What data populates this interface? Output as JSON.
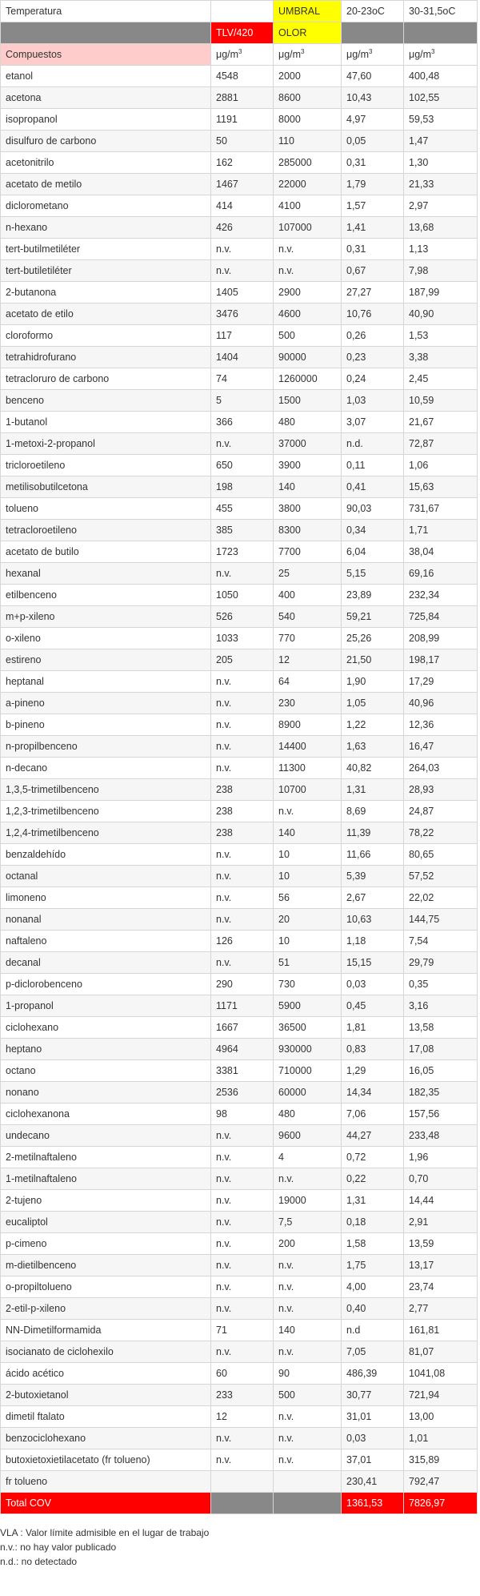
{
  "header": {
    "row1": [
      "Temperatura",
      null,
      "UMBRAL",
      "20-23oC",
      "30-31,5oC"
    ],
    "row2": [
      null,
      "TLV/420",
      "OLOR",
      null,
      null
    ],
    "row3": {
      "label": "Compuestos",
      "units": [
        {
          "text": "μg/m",
          "sup": "3"
        },
        {
          "text": "μg/m",
          "sup": "3"
        },
        {
          "text": "μg/m",
          "sup": "3"
        },
        {
          "text": "μg/m",
          "sup": "3"
        }
      ]
    }
  },
  "table": {
    "rows": [
      [
        "etanol",
        "4548",
        "2000",
        "47,60",
        "400,48"
      ],
      [
        "acetona",
        "2881",
        "8600",
        "10,43",
        "102,55"
      ],
      [
        "isopropanol",
        "1191",
        "8000",
        "4,97",
        "59,53"
      ],
      [
        "disulfuro de carbono",
        "50",
        "110",
        "0,05",
        "1,47"
      ],
      [
        "acetonitrilo",
        "162",
        "285000",
        "0,31",
        "1,30"
      ],
      [
        "acetato de metilo",
        "1467",
        "22000",
        "1,79",
        "21,33"
      ],
      [
        "diclorometano",
        "414",
        "4100",
        "1,57",
        "2,97"
      ],
      [
        "n-hexano",
        "426",
        "107000",
        "1,41",
        "13,68"
      ],
      [
        "tert-butilmetiléter",
        "n.v.",
        "n.v.",
        "0,31",
        "1,13"
      ],
      [
        "tert-butiletiléter",
        "n.v.",
        "n.v.",
        "0,67",
        "7,98"
      ],
      [
        "2-butanona",
        "1405",
        "2900",
        "27,27",
        "187,99"
      ],
      [
        "acetato de etilo",
        "3476",
        "4600",
        "10,76",
        "40,90"
      ],
      [
        "cloroformo",
        "117",
        "500",
        "0,26",
        "1,53"
      ],
      [
        "tetrahidrofurano",
        "1404",
        "90000",
        "0,23",
        "3,38"
      ],
      [
        "tetracloruro de carbono",
        "74",
        "1260000",
        "0,24",
        "2,45"
      ],
      [
        "benceno",
        "5",
        "1500",
        "1,03",
        "10,59"
      ],
      [
        "1-butanol",
        "366",
        "480",
        "3,07",
        "21,67"
      ],
      [
        "1-metoxi-2-propanol",
        "n.v.",
        "37000",
        "n.d.",
        "72,87"
      ],
      [
        "tricloroetileno",
        "650",
        "3900",
        "0,11",
        "1,06"
      ],
      [
        "metilisobutilcetona",
        "198",
        "140",
        "0,41",
        "15,63"
      ],
      [
        "tolueno",
        "455",
        "3800",
        "90,03",
        "731,67"
      ],
      [
        "tetracloroetileno",
        "385",
        "8300",
        "0,34",
        "1,71"
      ],
      [
        "acetato de butilo",
        "1723",
        "7700",
        "6,04",
        "38,04"
      ],
      [
        "hexanal",
        "n.v.",
        "25",
        "5,15",
        "69,16"
      ],
      [
        "etilbenceno",
        "1050",
        "400",
        "23,89",
        "232,34"
      ],
      [
        "m+p-xileno",
        "526",
        "540",
        "59,21",
        "725,84"
      ],
      [
        "o-xileno",
        "1033",
        "770",
        "25,26",
        "208,99"
      ],
      [
        "estireno",
        "205",
        "12",
        "21,50",
        "198,17"
      ],
      [
        "heptanal",
        "n.v.",
        "64",
        "1,90",
        "17,29"
      ],
      [
        "a-pineno",
        "n.v.",
        "230",
        "1,05",
        "40,96"
      ],
      [
        "b-pineno",
        "n.v.",
        "8900",
        "1,22",
        "12,36"
      ],
      [
        "n-propilbenceno",
        "n.v.",
        "14400",
        "1,63",
        "16,47"
      ],
      [
        "n-decano",
        "n.v.",
        "11300",
        "40,82",
        "264,03"
      ],
      [
        "1,3,5-trimetilbenceno",
        "238",
        "10700",
        "1,31",
        "28,93"
      ],
      [
        "1,2,3-trimetilbenceno",
        "238",
        "n.v.",
        "8,69",
        "24,87"
      ],
      [
        "1,2,4-trimetilbenceno",
        "238",
        "140",
        "11,39",
        "78,22"
      ],
      [
        "benzaldehído",
        "n.v.",
        "10",
        "11,66",
        "80,65"
      ],
      [
        "octanal",
        "n.v.",
        "10",
        "5,39",
        "57,52"
      ],
      [
        "limoneno",
        "n.v.",
        "56",
        "2,67",
        "22,02"
      ],
      [
        "nonanal",
        "n.v.",
        "20",
        "10,63",
        "144,75"
      ],
      [
        "naftaleno",
        "126",
        "10",
        "1,18",
        "7,54"
      ],
      [
        "decanal",
        "n.v.",
        "51",
        "15,15",
        "29,79"
      ],
      [
        "p-diclorobenceno",
        "290",
        "730",
        "0,03",
        "0,35"
      ],
      [
        "1-propanol",
        "1171",
        "5900",
        "0,45",
        "3,16"
      ],
      [
        "ciclohexano",
        "1667",
        "36500",
        "1,81",
        "13,58"
      ],
      [
        "heptano",
        "4964",
        "930000",
        "0,83",
        "17,08"
      ],
      [
        "octano",
        "3381",
        "710000",
        "1,29",
        "16,05"
      ],
      [
        "nonano",
        "2536",
        "60000",
        "14,34",
        "182,35"
      ],
      [
        "ciclohexanona",
        "98",
        "480",
        "7,06",
        "157,56"
      ],
      [
        "undecano",
        "n.v.",
        "9600",
        "44,27",
        "233,48"
      ],
      [
        "2-metilnaftaleno",
        "n.v.",
        "4",
        "0,72",
        "1,96"
      ],
      [
        "1-metilnaftaleno",
        "n.v.",
        "n.v.",
        "0,22",
        "0,70"
      ],
      [
        "2-tujeno",
        "n.v.",
        "19000",
        "1,31",
        "14,44"
      ],
      [
        "eucaliptol",
        "n.v.",
        "7,5",
        "0,18",
        "2,91"
      ],
      [
        "p-cimeno",
        "n.v.",
        "200",
        "1,58",
        "13,59"
      ],
      [
        "m-dietilbenceno",
        "n.v.",
        "n.v.",
        "1,75",
        "13,17"
      ],
      [
        "o-propiltolueno",
        "n.v.",
        "n.v.",
        "4,00",
        "23,74"
      ],
      [
        "2-etil-p-xileno",
        "n.v.",
        "n.v.",
        "0,40",
        "2,77"
      ],
      [
        "NN-Dimetilformamida",
        "71",
        "140",
        "n.d",
        "161,81"
      ],
      [
        "isocianato de ciclohexilo",
        "n.v.",
        "n.v.",
        "7,05",
        "81,07"
      ],
      [
        "ácido acético",
        "60",
        "90",
        "486,39",
        "1041,08"
      ],
      [
        "2-butoxietanol",
        "233",
        "500",
        "30,77",
        "721,94"
      ],
      [
        "dimetil ftalato",
        "12",
        "n.v.",
        "31,01",
        "13,00"
      ],
      [
        "benzociclohexano",
        "n.v.",
        "n.v.",
        "0,03",
        "1,01"
      ],
      [
        "butoxietoxietilacetato (fr tolueno)",
        "n.v.",
        "n.v.",
        "37,01",
        "315,89"
      ],
      [
        "fr tolueno",
        null,
        null,
        "230,41",
        "792,47"
      ]
    ],
    "total": [
      "Total COV",
      null,
      null,
      "1361,53",
      "7826,97"
    ]
  },
  "notes": [
    "VLA : Valor límite admisible en el lugar de trabajo",
    "n.v.: no hay valor publicado",
    "n.d.: no detectado"
  ]
}
